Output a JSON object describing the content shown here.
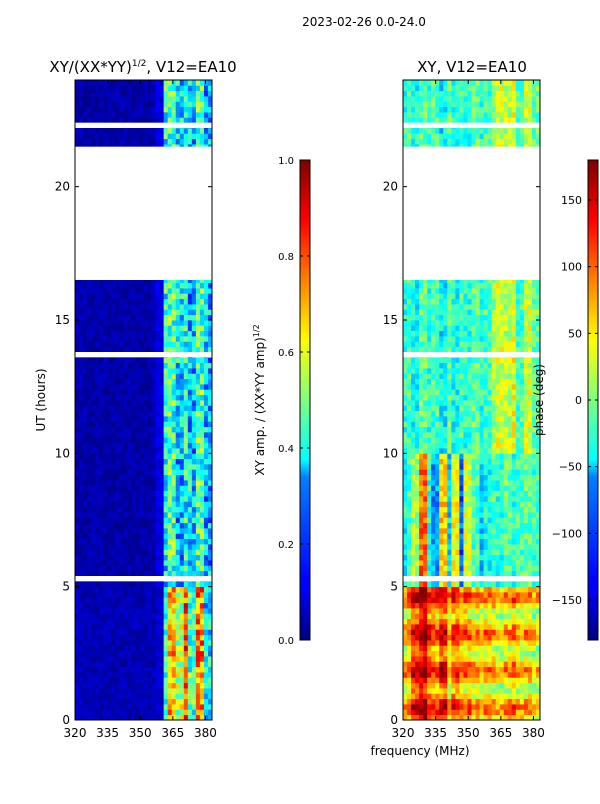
{
  "suptitle": "2023-02-26 0.0-24.0",
  "shared_xlabel": "frequency (MHz)",
  "chart_data": [
    {
      "type": "heatmap",
      "title": "XY/(XX*YY)",
      "title_superscript": "1/2",
      "title_suffix": ", V12=EA10",
      "xlabel": "",
      "ylabel": "UT (hours)",
      "xlim": [
        320,
        383
      ],
      "ylim": [
        0,
        24
      ],
      "xticks": [
        320,
        335,
        350,
        365,
        380
      ],
      "yticks": [
        0,
        5,
        10,
        15,
        20
      ],
      "x_values_mhz": [
        320,
        323,
        326,
        329,
        332,
        335,
        338,
        341,
        344,
        347,
        350,
        353,
        356,
        359,
        362,
        365,
        368,
        371,
        374,
        377,
        380
      ],
      "masked_ut_ranges": [
        [
          16.5,
          21.5
        ],
        [
          13.6,
          13.8
        ],
        [
          5.2,
          5.4
        ],
        [
          22.2,
          22.4
        ]
      ],
      "sample_rows": [
        {
          "ut": 2.0,
          "values": [
            0.08,
            0.06,
            0.05,
            0.05,
            0.05,
            0.05,
            0.05,
            0.05,
            0.05,
            0.05,
            0.05,
            0.05,
            0.05,
            0.08,
            0.4,
            0.7,
            0.55,
            0.8,
            0.45,
            0.75,
            0.35
          ]
        },
        {
          "ut": 8.0,
          "values": [
            0.05,
            0.04,
            0.04,
            0.04,
            0.04,
            0.04,
            0.04,
            0.04,
            0.04,
            0.04,
            0.04,
            0.04,
            0.04,
            0.1,
            0.35,
            0.45,
            0.3,
            0.4,
            0.35,
            0.45,
            0.3
          ]
        },
        {
          "ut": 12.0,
          "values": [
            0.05,
            0.04,
            0.04,
            0.04,
            0.04,
            0.04,
            0.04,
            0.04,
            0.04,
            0.04,
            0.04,
            0.04,
            0.05,
            0.1,
            0.4,
            0.45,
            0.35,
            0.4,
            0.3,
            0.45,
            0.3
          ]
        }
      ],
      "colorbar": {
        "label": "XY amp. / (XX*YY amp)",
        "label_superscript": "1/2",
        "range": [
          0.0,
          1.0
        ],
        "ticks": [
          "0.0",
          "0.2",
          "0.4",
          "0.6",
          "0.8",
          "1.0"
        ]
      },
      "colormap": "jet"
    },
    {
      "type": "heatmap",
      "title": "XY, V12=EA10",
      "xlabel": "frequency (MHz)",
      "ylabel": "",
      "xlim": [
        320,
        383
      ],
      "ylim": [
        0,
        24
      ],
      "xticks": [
        320,
        335,
        350,
        365,
        380
      ],
      "yticks": [
        0,
        5,
        10,
        15,
        20
      ],
      "x_values_mhz": [
        320,
        323,
        326,
        329,
        332,
        335,
        338,
        341,
        344,
        347,
        350,
        353,
        356,
        359,
        362,
        365,
        368,
        371,
        374,
        377,
        380
      ],
      "masked_ut_ranges": [
        [
          16.5,
          21.5
        ],
        [
          13.6,
          13.8
        ],
        [
          5.2,
          5.4
        ],
        [
          22.2,
          22.4
        ]
      ],
      "sample_rows": [
        {
          "ut": 2.0,
          "values": [
            60,
            80,
            120,
            150,
            110,
            90,
            120,
            60,
            100,
            70,
            80,
            60,
            50,
            70,
            60,
            40,
            60,
            80,
            50,
            60,
            40
          ]
        },
        {
          "ut": 8.0,
          "values": [
            -40,
            -20,
            10,
            100,
            -30,
            -80,
            60,
            -60,
            40,
            -100,
            30,
            -20,
            -60,
            -40,
            -20,
            -30,
            -10,
            -30,
            -20,
            -10,
            -20
          ]
        },
        {
          "ut": 12.0,
          "values": [
            -30,
            -20,
            -40,
            -10,
            -30,
            -20,
            -50,
            -10,
            -40,
            -20,
            -30,
            -10,
            -30,
            -20,
            10,
            30,
            20,
            40,
            -20,
            30,
            -10
          ]
        }
      ],
      "colorbar": {
        "label": "phase (deg)",
        "range": [
          -180,
          180
        ],
        "ticks": [
          "−150",
          "−100",
          "−50",
          "0",
          "50",
          "100",
          "150"
        ]
      },
      "colormap": "jet"
    }
  ]
}
